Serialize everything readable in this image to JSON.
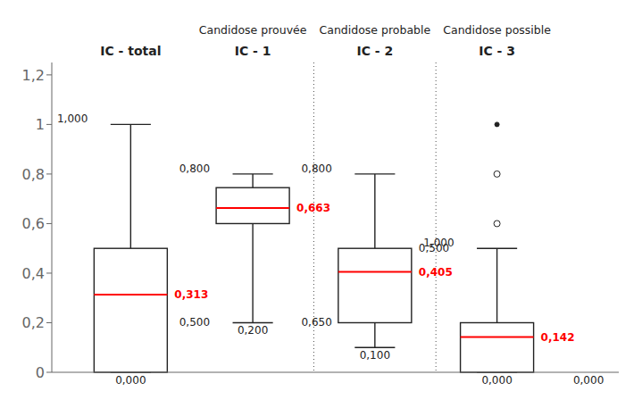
{
  "chart_data": {
    "type": "box",
    "categories": [
      "IC - total",
      "IC - 1",
      "IC - 2",
      "IC - 3"
    ],
    "group_labels": [
      null,
      "Candidose prouvée",
      "Candidose probable",
      "Candidose possible"
    ],
    "boxes": [
      {
        "whisker_low": 0,
        "q1": 0,
        "median": 0.313,
        "q3": 0.5,
        "whisker_high": 1.0,
        "outliers": [],
        "outliers_filled": [],
        "top_label": "1,000",
        "bottom_label": "0,000",
        "median_label": "0,313",
        "extra_labels": []
      },
      {
        "whisker_low": 0.2,
        "q1": 0.6,
        "median": 0.663,
        "q3": 0.745,
        "whisker_high": 0.8,
        "outliers": [],
        "outliers_filled": [],
        "top_label": "0,800",
        "bottom_label": "0,200",
        "median_label": "0,663",
        "extra_labels": [
          {
            "text": "0,500",
            "value": 0.2,
            "side": "left"
          }
        ]
      },
      {
        "whisker_low": 0.1,
        "q1": 0.2,
        "median": 0.405,
        "q3": 0.5,
        "whisker_high": 0.8,
        "outliers": [],
        "outliers_filled": [],
        "top_label": "0,800",
        "bottom_label": "0,100",
        "median_label": "0,405",
        "extra_labels": [
          {
            "text": "0,650",
            "value": 0.2,
            "side": "left"
          },
          {
            "text": "0,500",
            "value": 0.5,
            "side": "right"
          }
        ]
      },
      {
        "whisker_low": 0,
        "q1": 0,
        "median": 0.142,
        "q3": 0.2,
        "whisker_high": 0.5,
        "outliers": [
          0.6,
          0.8
        ],
        "outliers_filled": [
          1.0
        ],
        "top_label": "1,000",
        "bottom_label": "0,000",
        "median_label": "0,142",
        "extra_labels": []
      }
    ],
    "annotations": [
      {
        "text": "0,000",
        "value": 0
      }
    ],
    "color": "red",
    "ylim": [
      0,
      1.25
    ],
    "yticks": [
      0,
      {
        "value": 0.2,
        "label": "0,2"
      },
      {
        "value": 0.4,
        "label": "0,4"
      },
      {
        "value": 0.6,
        "label": "0,6"
      },
      {
        "value": 0.8,
        "label": "0,8"
      },
      1,
      {
        "value": 1.2,
        "label": "1,2"
      }
    ]
  }
}
